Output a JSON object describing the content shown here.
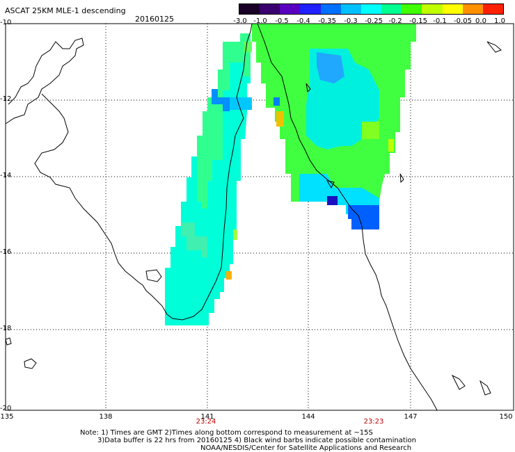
{
  "header": {
    "title": "ASCAT 25KM MLE-1 descending",
    "date": "20160125"
  },
  "colorbar": {
    "labels": [
      "-3.0",
      "-1.0",
      "-0.5",
      "-0.4",
      "-0.35",
      "-0.3",
      "-0.25",
      "-0.2",
      "-0.15",
      "-0.1",
      "-0.05",
      "0.0",
      "1.0"
    ],
    "colors": [
      "#1a0026",
      "#3a006e",
      "#5a00c0",
      "#2020ff",
      "#0070ff",
      "#00c0ff",
      "#00ffff",
      "#00ff90",
      "#40ff00",
      "#c0ff00",
      "#ffff00",
      "#ff9000",
      "#ff2000"
    ]
  },
  "axes": {
    "lat_labels": [
      "-10",
      "-12",
      "-14",
      "-16",
      "-18",
      "-20"
    ],
    "lon_labels": [
      "135",
      "138",
      "141",
      "144",
      "147",
      "150"
    ],
    "time_labels": [
      "23:24",
      "23:23"
    ]
  },
  "notes": {
    "line1": "Note: 1) Times are GMT 2)Times along bottom correspond to measurement at ~15S",
    "line2": "3)Data buffer is 22 hrs from 20160125 4) Black wind barbs indicate possible contamination",
    "line3": "NOAA/NESDIS/Center for Satellite Applications and Research"
  }
}
